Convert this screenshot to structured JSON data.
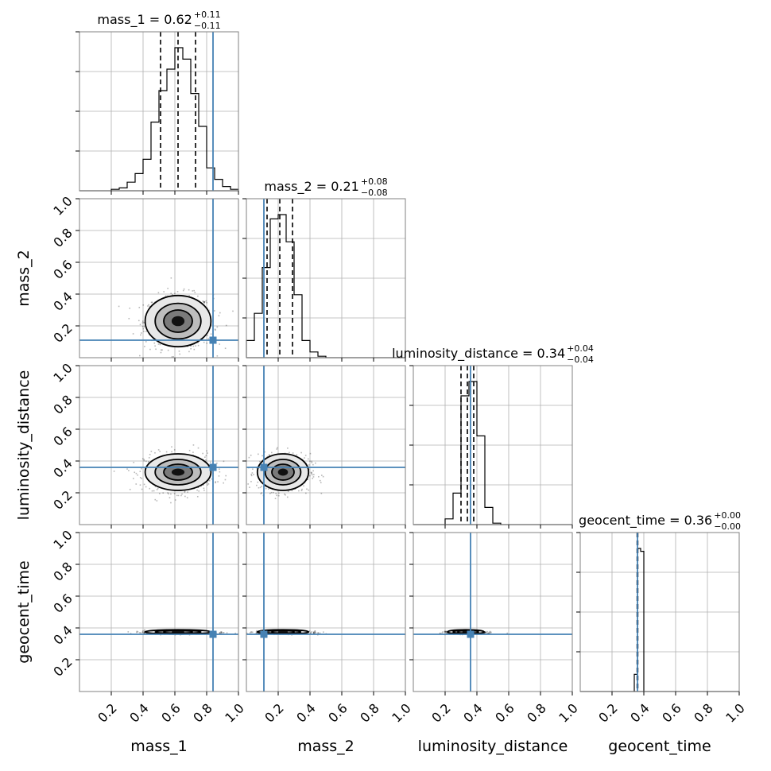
{
  "chart_data": {
    "type": "corner",
    "parameters": [
      "mass_1",
      "mass_2",
      "luminosity_distance",
      "geocent_time"
    ],
    "axis_labels": [
      "mass_1",
      "mass_2",
      "luminosity_distance",
      "geocent_time"
    ],
    "titles": [
      {
        "param": "mass_1",
        "median": "0.62",
        "plus": "+0.11",
        "minus": "−0.11"
      },
      {
        "param": "mass_2",
        "median": "0.21",
        "plus": "+0.08",
        "minus": "−0.08"
      },
      {
        "param": "luminosity_distance",
        "median": "0.34",
        "plus": "+0.04",
        "minus": "−0.04"
      },
      {
        "param": "geocent_time",
        "median": "0.36",
        "plus": "+0.00",
        "minus": "−0.00"
      }
    ],
    "range": [
      0,
      1
    ],
    "ticks": [
      0.2,
      0.4,
      0.6,
      0.8,
      1.0
    ],
    "tick_labels": [
      "0.2",
      "0.4",
      "0.6",
      "0.8",
      "1.0"
    ],
    "truths": [
      0.84,
      0.11,
      0.36,
      0.36
    ],
    "truth_color": "#4682b4",
    "quantile_lines": [
      [
        0.51,
        0.62,
        0.73
      ],
      [
        0.13,
        0.21,
        0.29
      ],
      [
        0.3,
        0.34,
        0.38
      ],
      [
        0.358,
        0.36,
        0.362
      ]
    ],
    "histograms": [
      {
        "edges": [
          0.2,
          0.25,
          0.3,
          0.35,
          0.4,
          0.45,
          0.5,
          0.55,
          0.6,
          0.65,
          0.7,
          0.75,
          0.8,
          0.85,
          0.9,
          0.95,
          1.0
        ],
        "values": [
          0.01,
          0.02,
          0.06,
          0.12,
          0.22,
          0.48,
          0.7,
          0.85,
          1.0,
          0.92,
          0.68,
          0.45,
          0.16,
          0.08,
          0.03,
          0.01
        ]
      },
      {
        "edges": [
          0.0,
          0.05,
          0.1,
          0.15,
          0.2,
          0.25,
          0.3,
          0.35,
          0.4,
          0.45,
          0.5
        ],
        "values": [
          0.12,
          0.31,
          0.63,
          0.97,
          1.0,
          0.81,
          0.44,
          0.12,
          0.04,
          0.01
        ]
      },
      {
        "edges": [
          0.2,
          0.25,
          0.3,
          0.35,
          0.4,
          0.45,
          0.5,
          0.55
        ],
        "values": [
          0.04,
          0.22,
          0.9,
          1.0,
          0.62,
          0.12,
          0.01
        ]
      },
      {
        "edges": [
          0.34,
          0.36,
          0.38,
          0.4
        ],
        "values": [
          0.12,
          1.0,
          0.98
        ]
      }
    ],
    "scatter_spread": [
      0.09,
      0.07,
      0.05,
      0.004
    ],
    "scatter_center": [
      0.62,
      0.23,
      0.33,
      0.375
    ],
    "grid": true
  }
}
